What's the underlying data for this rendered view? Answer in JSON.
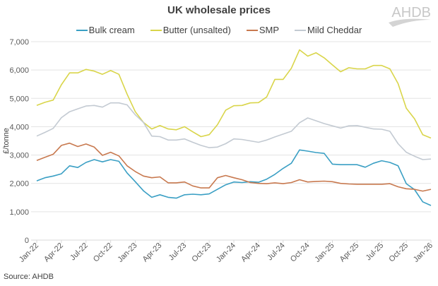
{
  "chart_data": {
    "type": "line",
    "title": "UK wholesale prices",
    "ylabel": "£/tonne",
    "xlabel": "",
    "ylim": [
      0,
      7000
    ],
    "y_ticks": [
      "0",
      "1,000",
      "2,000",
      "3,000",
      "4,000",
      "5,000",
      "6,000",
      "7,000"
    ],
    "y_tick_values": [
      0,
      1000,
      2000,
      3000,
      4000,
      5000,
      6000,
      7000
    ],
    "grid": true,
    "legend": "top",
    "x": [
      "Jan-22",
      "Feb-22",
      "Mar-22",
      "Apr-22",
      "May-22",
      "Jun-22",
      "Jul-22",
      "Aug-22",
      "Sep-22",
      "Oct-22",
      "Nov-22",
      "Dec-22",
      "Jan-23",
      "Feb-23",
      "Mar-23",
      "Apr-23",
      "May-23",
      "Jun-23",
      "Jul-23",
      "Aug-23",
      "Sep-23",
      "Oct-23",
      "Nov-23",
      "Dec-23",
      "Jan-24",
      "Feb-24",
      "Mar-24",
      "Apr-24",
      "May-24",
      "Jun-24",
      "Jul-24",
      "Aug-24",
      "Sep-24",
      "Oct-24",
      "Nov-24",
      "Dec-24",
      "Jan-25",
      "Feb-25",
      "Mar-25",
      "Apr-25",
      "May-25",
      "Jun-25",
      "Jul-25",
      "Aug-25",
      "Sep-25",
      "Oct-25",
      "Nov-25",
      "Dec-25",
      "Jan-26"
    ],
    "x_tick_labels": [
      "Jan-22",
      "Apr-22",
      "Jul-22",
      "Oct-22",
      "Jan-23",
      "Apr-23",
      "Jul-23",
      "Oct-23",
      "Jan-24",
      "Apr-24",
      "Jul-24",
      "Oct-24",
      "Jan-25",
      "Apr-25",
      "Jul-25",
      "Oct-25",
      "Jan-26"
    ],
    "series": [
      {
        "name": "Bulk cream",
        "color": "#3a9fc4",
        "values": [
          2090,
          2200,
          2260,
          2340,
          2620,
          2560,
          2740,
          2840,
          2760,
          2840,
          2780,
          2370,
          2060,
          1740,
          1510,
          1600,
          1510,
          1480,
          1600,
          1620,
          1600,
          1630,
          1790,
          1950,
          2050,
          2030,
          2060,
          2040,
          2150,
          2320,
          2530,
          2710,
          3180,
          3140,
          3090,
          3060,
          2680,
          2660,
          2660,
          2660,
          2570,
          2710,
          2800,
          2740,
          2620,
          1990,
          1780,
          1350,
          1220
        ]
      },
      {
        "name": "Butter (unsalted)",
        "color": "#d9d54a",
        "values": [
          4750,
          4860,
          4940,
          5480,
          5900,
          5900,
          6020,
          5960,
          5850,
          5980,
          5850,
          5150,
          4530,
          4150,
          3920,
          4040,
          3920,
          3890,
          4000,
          3820,
          3650,
          3720,
          4070,
          4580,
          4740,
          4750,
          4840,
          4850,
          5050,
          5670,
          5670,
          6060,
          6710,
          6490,
          6610,
          6430,
          6180,
          5940,
          6080,
          6040,
          6040,
          6160,
          6160,
          6040,
          5520,
          4650,
          4280,
          3720,
          3600
        ]
      },
      {
        "name": "SMP",
        "color": "#c8794f",
        "values": [
          2810,
          2920,
          3030,
          3340,
          3420,
          3300,
          3390,
          3280,
          2990,
          3100,
          2970,
          2620,
          2420,
          2260,
          2200,
          2230,
          2020,
          2020,
          2050,
          1910,
          1840,
          1840,
          2200,
          2280,
          2200,
          2130,
          2030,
          2000,
          1990,
          2020,
          1990,
          2030,
          2130,
          2050,
          2070,
          2080,
          2060,
          2000,
          1980,
          1970,
          1970,
          1970,
          1970,
          1990,
          1880,
          1810,
          1790,
          1730,
          1790
        ]
      },
      {
        "name": "Mild Cheddar",
        "color": "#c3cad2",
        "values": [
          3670,
          3800,
          3940,
          4320,
          4530,
          4630,
          4730,
          4750,
          4690,
          4840,
          4840,
          4770,
          4420,
          4150,
          3670,
          3650,
          3530,
          3530,
          3570,
          3450,
          3340,
          3260,
          3280,
          3400,
          3570,
          3550,
          3500,
          3450,
          3530,
          3640,
          3740,
          3840,
          4140,
          4310,
          4210,
          4110,
          4030,
          3950,
          4030,
          4040,
          3980,
          3920,
          3910,
          3840,
          3400,
          3100,
          2960,
          2840,
          2860
        ]
      }
    ]
  },
  "logo_text": "AHDB",
  "source": "Source: AHDB"
}
